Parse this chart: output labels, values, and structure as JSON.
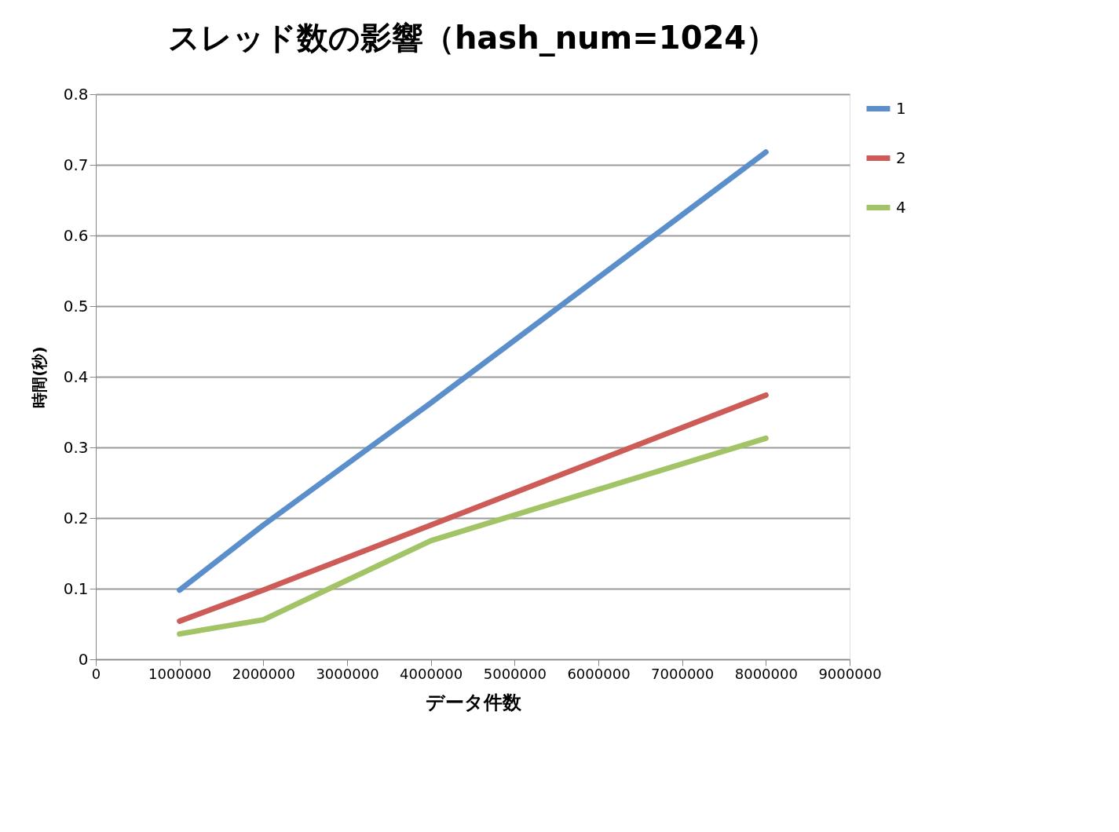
{
  "chart_data": {
    "type": "line",
    "title": "スレッド数の影響（hash_num=1024）",
    "xlabel": "データ件数",
    "ylabel": "時間(秒)",
    "x": [
      1000000,
      2000000,
      4000000,
      8000000
    ],
    "series": [
      {
        "name": "1",
        "color": "#5b8fcb",
        "values": [
          0.098,
          0.19,
          0.363,
          0.718
        ]
      },
      {
        "name": "2",
        "color": "#cd5c58",
        "values": [
          0.054,
          0.098,
          0.19,
          0.374
        ]
      },
      {
        "name": "4",
        "color": "#a3c466",
        "values": [
          0.036,
          0.056,
          0.168,
          0.313
        ]
      }
    ],
    "xlim": [
      0,
      9000000
    ],
    "xticks": [
      0,
      1000000,
      2000000,
      3000000,
      4000000,
      5000000,
      6000000,
      7000000,
      8000000,
      9000000
    ],
    "ylim": [
      0,
      0.8
    ],
    "yticks": [
      0,
      0.1,
      0.2,
      0.3,
      0.4,
      0.5,
      0.6,
      0.7,
      0.8
    ],
    "grid": "y",
    "legend": "right",
    "marker": "none",
    "line_style": "solid"
  }
}
